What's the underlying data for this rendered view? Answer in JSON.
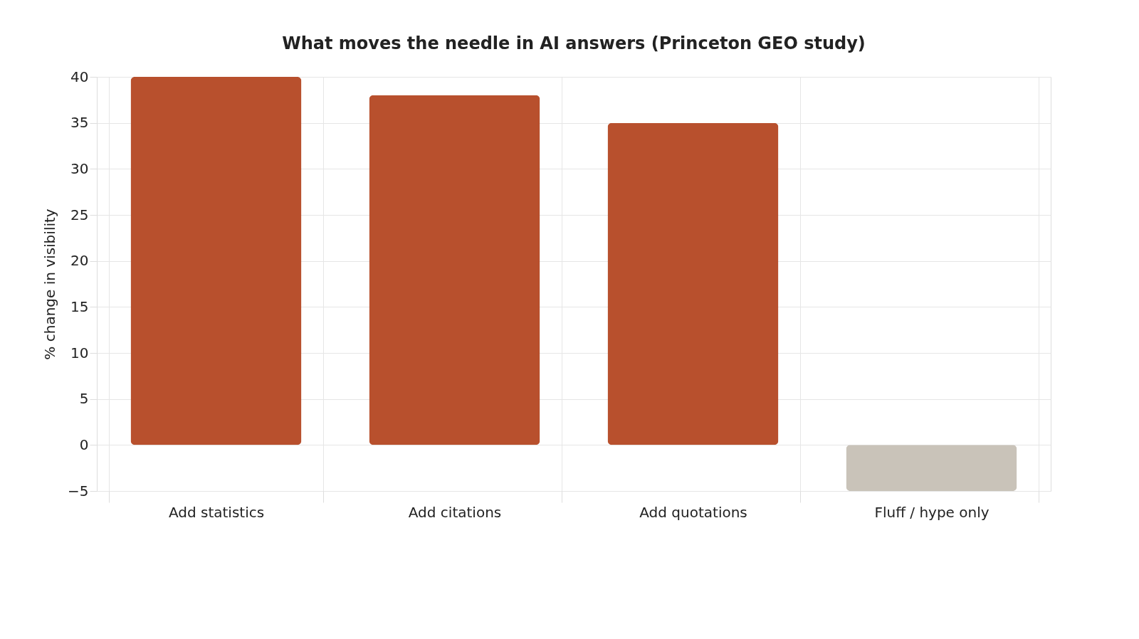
{
  "chart_data": {
    "type": "bar",
    "title": "What moves the needle in AI answers (Princeton GEO study)",
    "ylabel": "% change in visibility",
    "categories": [
      "Add statistics",
      "Add citations",
      "Add quotations",
      "Fluff / hype only"
    ],
    "values": [
      40,
      38,
      35,
      -5
    ],
    "colors": [
      "#b8502d",
      "#b8502d",
      "#b8502d",
      "#c9c3b9"
    ],
    "ylim": [
      -5,
      40
    ],
    "yticks": [
      -5,
      0,
      5,
      10,
      15,
      20,
      25,
      30,
      35,
      40
    ],
    "grid": true
  }
}
